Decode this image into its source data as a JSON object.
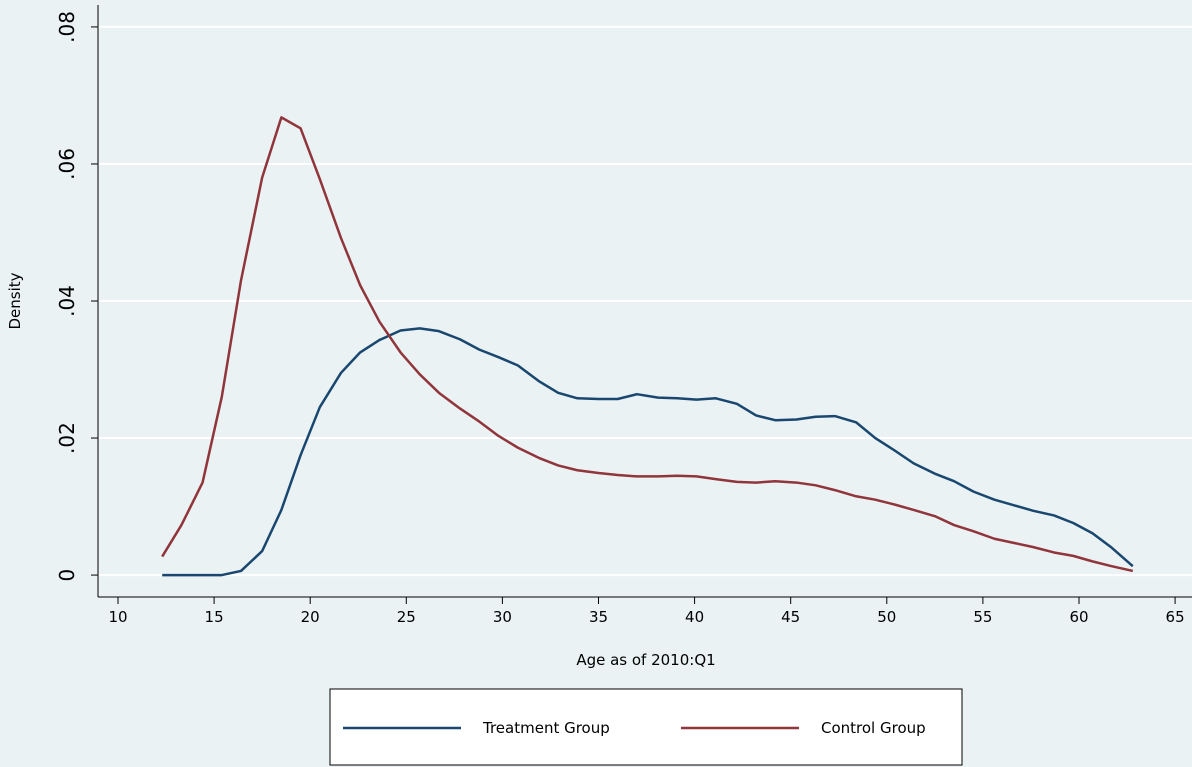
{
  "chart_data": {
    "type": "line",
    "x_label": "Age as of 2010:Q1",
    "y_label": "Density",
    "x": [
      12.3,
      13.3,
      14.4,
      15.4,
      16.4,
      17.5,
      18.5,
      19.5,
      20.5,
      21.6,
      22.6,
      23.6,
      24.7,
      25.7,
      26.7,
      27.8,
      28.8,
      29.8,
      30.8,
      31.9,
      32.9,
      33.9,
      35.0,
      36.0,
      37.0,
      38.1,
      39.1,
      40.1,
      41.1,
      42.2,
      43.2,
      44.2,
      45.3,
      46.3,
      47.3,
      48.4,
      49.4,
      50.4,
      51.4,
      52.5,
      53.5,
      54.5,
      55.6,
      56.6,
      57.6,
      58.7,
      59.7,
      60.7,
      61.7,
      62.8
    ],
    "series": [
      {
        "name": "Treatment Group",
        "color": "#1a476f",
        "values": [
          0,
          0,
          0,
          0,
          0.0006,
          0.0035,
          0.0095,
          0.0175,
          0.0245,
          0.0295,
          0.0325,
          0.0343,
          0.0357,
          0.036,
          0.0356,
          0.0344,
          0.0329,
          0.0318,
          0.0306,
          0.0283,
          0.0266,
          0.0258,
          0.0257,
          0.0257,
          0.0264,
          0.0259,
          0.0258,
          0.0256,
          0.0258,
          0.025,
          0.0233,
          0.0226,
          0.0227,
          0.0231,
          0.0232,
          0.0223,
          0.02,
          0.0182,
          0.0163,
          0.0148,
          0.0137,
          0.0122,
          0.011,
          0.0102,
          0.0094,
          0.0087,
          0.0076,
          0.0061,
          0.004,
          0.0013
        ]
      },
      {
        "name": "Control Group",
        "color": "#90353b",
        "values": [
          0.0027,
          0.0073,
          0.0135,
          0.026,
          0.043,
          0.058,
          0.0668,
          0.0652,
          0.0578,
          0.0492,
          0.0423,
          0.037,
          0.0325,
          0.0293,
          0.0266,
          0.0243,
          0.0224,
          0.0203,
          0.0186,
          0.0171,
          0.016,
          0.0153,
          0.0149,
          0.0146,
          0.0144,
          0.0144,
          0.0145,
          0.0144,
          0.014,
          0.0136,
          0.0135,
          0.0137,
          0.0135,
          0.0131,
          0.0124,
          0.0115,
          0.011,
          0.0103,
          0.0095,
          0.0086,
          0.0073,
          0.0064,
          0.0053,
          0.0047,
          0.0041,
          0.0033,
          0.0028,
          0.002,
          0.0013,
          0.0006
        ]
      }
    ],
    "xlim": [
      8.96,
      65.88
    ],
    "xticks": [
      10,
      15,
      20,
      25,
      30,
      35,
      40,
      45,
      50,
      55,
      60,
      65
    ],
    "ylim": [
      -0.0032,
      0.0832
    ],
    "yticks": [
      0,
      {
        "value": 0.02,
        "label": ".02"
      },
      {
        "value": 0.04,
        "label": ".04"
      },
      {
        "value": 0.06,
        "label": ".06"
      },
      {
        "value": 0.08,
        "label": ".08"
      }
    ],
    "grid": true,
    "legend": "bottom"
  }
}
